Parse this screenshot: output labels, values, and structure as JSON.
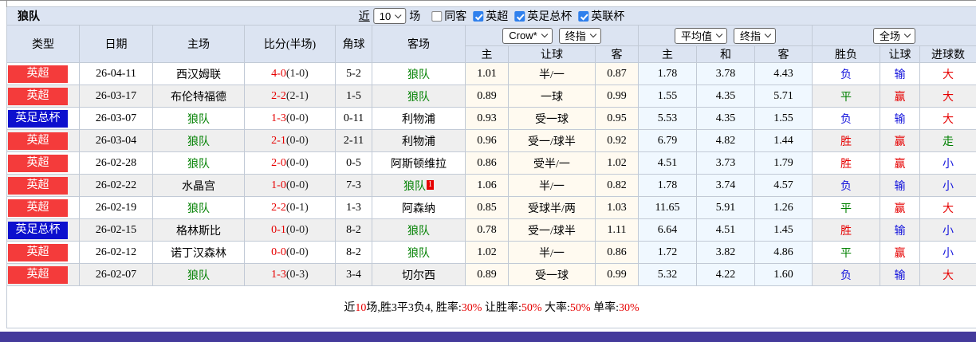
{
  "title": "狼队",
  "toolbar": {
    "near": "近",
    "near_value": "10",
    "games": "场",
    "checkboxes": [
      {
        "label": "同客",
        "checked": false
      },
      {
        "label": "英超",
        "checked": true
      },
      {
        "label": "英足总杯",
        "checked": true
      },
      {
        "label": "英联杯",
        "checked": true
      }
    ]
  },
  "header": {
    "static_cols": [
      "类型",
      "日期",
      "主场",
      "比分(半场)",
      "角球",
      "客场"
    ],
    "odds_groups": [
      {
        "selects": [
          "Crow*",
          "终指"
        ],
        "cols": [
          "主",
          "让球",
          "客"
        ]
      },
      {
        "selects": [
          "平均值",
          "终指"
        ],
        "cols": [
          "主",
          "和",
          "客"
        ]
      },
      {
        "selects": [
          "全场"
        ],
        "cols": [
          "胜负",
          "让球",
          "进球数"
        ]
      }
    ]
  },
  "rows": [
    {
      "league": "英超",
      "date": "26-04-11",
      "home": "西汉姆联",
      "score": "4-0",
      "half": "(1-0)",
      "corners": "5-2",
      "away": "狼队",
      "away_badge": "",
      "hcp_home": "1.01",
      "hcp": "半/一",
      "hcp_away": "0.87",
      "euro_home": "1.78",
      "euro_draw": "3.78",
      "euro_away": "4.43",
      "res_wdl": "负",
      "res_hcp": "输",
      "res_goals": "大"
    },
    {
      "league": "英超",
      "date": "26-03-17",
      "home": "布伦特福德",
      "score": "2-2",
      "half": "(2-1)",
      "corners": "1-5",
      "away": "狼队",
      "away_badge": "",
      "hcp_home": "0.89",
      "hcp": "一球",
      "hcp_away": "0.99",
      "euro_home": "1.55",
      "euro_draw": "4.35",
      "euro_away": "5.71",
      "res_wdl": "平",
      "res_hcp": "赢",
      "res_goals": "大"
    },
    {
      "league": "英足总杯",
      "date": "26-03-07",
      "home": "狼队",
      "score": "1-3",
      "half": "(0-0)",
      "corners": "0-11",
      "away": "利物浦",
      "away_badge": "",
      "hcp_home": "0.93",
      "hcp": "受一球",
      "hcp_away": "0.95",
      "euro_home": "5.53",
      "euro_draw": "4.35",
      "euro_away": "1.55",
      "res_wdl": "负",
      "res_hcp": "输",
      "res_goals": "大"
    },
    {
      "league": "英超",
      "date": "26-03-04",
      "home": "狼队",
      "score": "2-1",
      "half": "(0-0)",
      "corners": "2-11",
      "away": "利物浦",
      "away_badge": "",
      "hcp_home": "0.96",
      "hcp": "受一/球半",
      "hcp_away": "0.92",
      "euro_home": "6.79",
      "euro_draw": "4.82",
      "euro_away": "1.44",
      "res_wdl": "胜",
      "res_hcp": "赢",
      "res_goals": "走"
    },
    {
      "league": "英超",
      "date": "26-02-28",
      "home": "狼队",
      "score": "2-0",
      "half": "(0-0)",
      "corners": "0-5",
      "away": "阿斯顿维拉",
      "away_badge": "",
      "hcp_home": "0.86",
      "hcp": "受半/一",
      "hcp_away": "1.02",
      "euro_home": "4.51",
      "euro_draw": "3.73",
      "euro_away": "1.79",
      "res_wdl": "胜",
      "res_hcp": "赢",
      "res_goals": "小"
    },
    {
      "league": "英超",
      "date": "26-02-22",
      "home": "水晶宫",
      "score": "1-0",
      "half": "(0-0)",
      "corners": "7-3",
      "away": "狼队",
      "away_badge": "1",
      "hcp_home": "1.06",
      "hcp": "半/一",
      "hcp_away": "0.82",
      "euro_home": "1.78",
      "euro_draw": "3.74",
      "euro_away": "4.57",
      "res_wdl": "负",
      "res_hcp": "输",
      "res_goals": "小"
    },
    {
      "league": "英超",
      "date": "26-02-19",
      "home": "狼队",
      "score": "2-2",
      "half": "(0-1)",
      "corners": "1-3",
      "away": "阿森纳",
      "away_badge": "",
      "hcp_home": "0.85",
      "hcp": "受球半/两",
      "hcp_away": "1.03",
      "euro_home": "11.65",
      "euro_draw": "5.91",
      "euro_away": "1.26",
      "res_wdl": "平",
      "res_hcp": "赢",
      "res_goals": "大"
    },
    {
      "league": "英足总杯",
      "date": "26-02-15",
      "home": "格林斯比",
      "score": "0-1",
      "half": "(0-0)",
      "corners": "8-2",
      "away": "狼队",
      "away_badge": "",
      "hcp_home": "0.78",
      "hcp": "受一/球半",
      "hcp_away": "1.11",
      "euro_home": "6.64",
      "euro_draw": "4.51",
      "euro_away": "1.45",
      "res_wdl": "胜",
      "res_hcp": "输",
      "res_goals": "小"
    },
    {
      "league": "英超",
      "date": "26-02-12",
      "home": "诺丁汉森林",
      "score": "0-0",
      "half": "(0-0)",
      "corners": "8-2",
      "away": "狼队",
      "away_badge": "",
      "hcp_home": "1.02",
      "hcp": "半/一",
      "hcp_away": "0.86",
      "euro_home": "1.72",
      "euro_draw": "3.82",
      "euro_away": "4.86",
      "res_wdl": "平",
      "res_hcp": "赢",
      "res_goals": "小"
    },
    {
      "league": "英超",
      "date": "26-02-07",
      "home": "狼队",
      "score": "1-3",
      "half": "(0-3)",
      "corners": "3-4",
      "away": "切尔西",
      "away_badge": "",
      "hcp_home": "0.89",
      "hcp": "受一球",
      "hcp_away": "0.99",
      "euro_home": "5.32",
      "euro_draw": "4.22",
      "euro_away": "1.60",
      "res_wdl": "负",
      "res_hcp": "输",
      "res_goals": "大"
    }
  ],
  "summary_parts": [
    {
      "text": "近",
      "red": false
    },
    {
      "text": "10",
      "red": true
    },
    {
      "text": "场,胜3平3负4, 胜率:",
      "red": false
    },
    {
      "text": "30%",
      "red": true
    },
    {
      "text": " 让胜率:",
      "red": false
    },
    {
      "text": "50%",
      "red": true
    },
    {
      "text": " 大率:",
      "red": false
    },
    {
      "text": "50%",
      "red": true
    },
    {
      "text": " 单率:",
      "red": false
    },
    {
      "text": "30%",
      "red": true
    }
  ],
  "colors": {
    "league": {
      "英超": "#f43b3b",
      "英足总杯": "#0d10ce"
    },
    "result": {
      "胜": "#e60000",
      "平": "#008000",
      "负": "#1414dc",
      "赢": "#e60000",
      "输": "#1414dc",
      "走": "#008000",
      "大": "#e60000",
      "小": "#1414dc"
    },
    "self_team": "#008000",
    "header_bg": "#dce4f2",
    "accent_bar": "#443a9b"
  }
}
